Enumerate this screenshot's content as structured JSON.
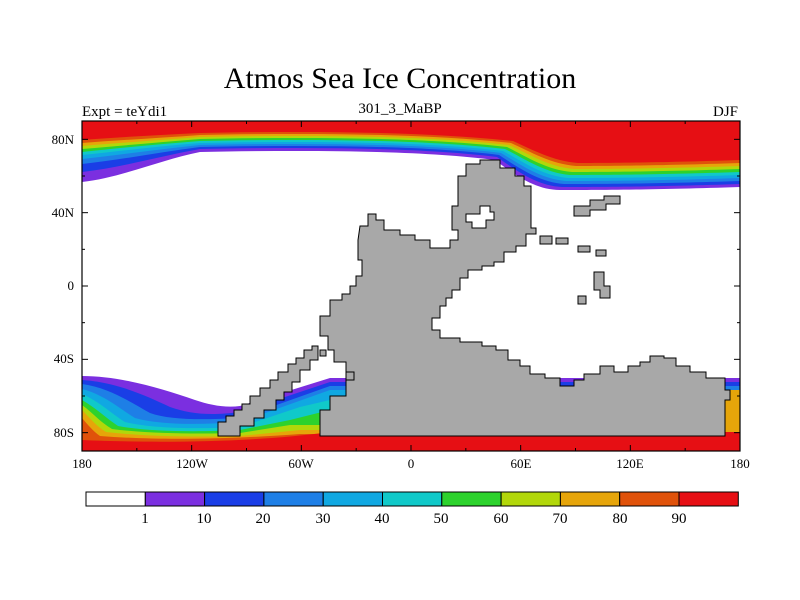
{
  "title": "Atmos Sea Ice Concentration",
  "subtitle": "301_3_MaBP",
  "left_label": "Expt = teYdi1",
  "right_label": "DJF",
  "x_ticks": [
    "180",
    "120W",
    "60W",
    "0",
    "60E",
    "120E",
    "180"
  ],
  "y_ticks": [
    "80N",
    "40N",
    "0",
    "40S",
    "80S"
  ],
  "colorbar": {
    "labels": [
      "1",
      "10",
      "20",
      "30",
      "40",
      "50",
      "60",
      "70",
      "80",
      "90"
    ],
    "colors": [
      "#ffffff",
      "#7b2fe0",
      "#1a3ee6",
      "#1e7fe6",
      "#10a8e2",
      "#10c9c9",
      "#2dd22d",
      "#b2d70a",
      "#e6a50a",
      "#e0520a",
      "#e60f14"
    ]
  },
  "land_color": "#a8a8a8"
}
